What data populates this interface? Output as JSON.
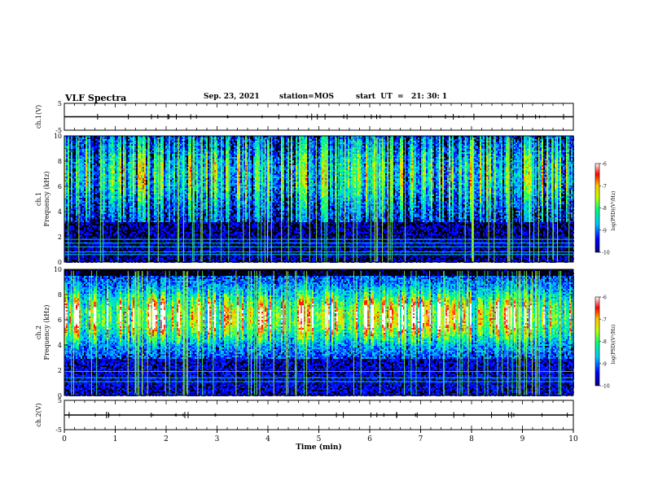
{
  "header": {
    "title": "VLF Spectra",
    "date": "Sep. 23, 2021",
    "station": "station=MOS",
    "start": "start  UT  =   21: 30: 1"
  },
  "chart_data": [
    {
      "type": "line",
      "panel": "top-waveform",
      "ylabel": "ch.1(V)",
      "ylim": [
        -5,
        5
      ],
      "yticks": [
        "5",
        "-5"
      ],
      "x": [
        0,
        10
      ],
      "values": [
        0,
        0
      ]
    },
    {
      "type": "heatmap",
      "panel": "spectrogram-ch1",
      "ylabel": "ch.1\nFrequency (kHz)",
      "ylabel_line1": "ch.1",
      "ylabel_line2": "Frequency (kHz)",
      "ylim": [
        0,
        10
      ],
      "yticks": [
        "0",
        "2",
        "4",
        "6",
        "8",
        "10"
      ],
      "xlim": [
        0,
        10
      ],
      "colorbar": {
        "label": "log(PSD)(V²/Hz)",
        "range": [
          -10,
          -6
        ],
        "ticks": [
          "-6",
          "-7",
          "-8",
          "-9",
          "-10"
        ],
        "colors": [
          "#000080",
          "#0000ff",
          "#00c8ff",
          "#00ff80",
          "#c8ff00",
          "#ffc800",
          "#ff0000",
          "#ffffff"
        ]
      },
      "band_kHz": [
        0.5,
        10
      ]
    },
    {
      "type": "heatmap",
      "panel": "spectrogram-ch2",
      "ylabel": "ch.2\nFrequency (kHz)",
      "ylabel_line1": "ch.2",
      "ylabel_line2": "Frequency (kHz)",
      "ylim": [
        0,
        10
      ],
      "yticks": [
        "0",
        "2",
        "4",
        "6",
        "8",
        "10"
      ],
      "xlim": [
        0,
        10
      ],
      "colorbar": {
        "label": "log(PSD)(V²/Hz)",
        "range": [
          -10,
          -6
        ],
        "ticks": [
          "-6",
          "-7",
          "-8",
          "-9",
          "-10"
        ],
        "colors": [
          "#000080",
          "#0000ff",
          "#00c8ff",
          "#00ff80",
          "#c8ff00",
          "#ffc800",
          "#ff0000",
          "#ffffff"
        ]
      },
      "band_kHz": [
        3,
        9.5
      ]
    },
    {
      "type": "line",
      "panel": "bottom-waveform",
      "ylabel": "ch.2(V)",
      "ylim": [
        -5,
        5
      ],
      "yticks": [
        "5",
        "-5"
      ],
      "x": [
        0,
        10
      ],
      "values": [
        0,
        0
      ]
    }
  ],
  "xaxis": {
    "label": "Time (min)",
    "ticks": [
      "0",
      "1",
      "2",
      "3",
      "4",
      "5",
      "6",
      "7",
      "8",
      "9",
      "10"
    ]
  }
}
